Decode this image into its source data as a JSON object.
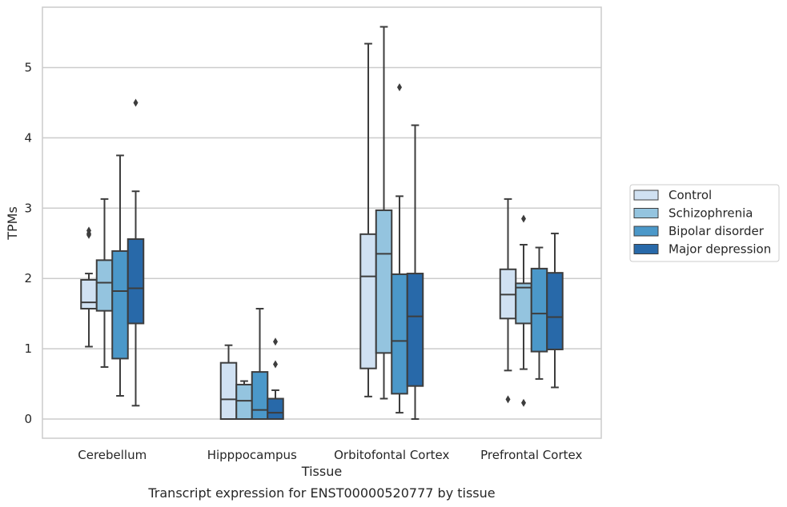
{
  "chart_data": {
    "type": "box",
    "caption": "Transcript expression for ENST00000520777 by tissue",
    "xlabel": "Tissue",
    "ylabel": "TPMs",
    "ylim": [
      -0.27,
      5.85
    ],
    "yticks": [
      0,
      1,
      2,
      3,
      4,
      5
    ],
    "grid": "horizontal",
    "legend_position": "right",
    "categories": [
      "Cerebellum",
      "Hipppocampus",
      "Orbitofontal Cortex",
      "Prefrontal Cortex"
    ],
    "series": [
      {
        "name": "Control",
        "color": "#d0e1f2",
        "boxes": [
          {
            "whislo": 1.03,
            "q1": 1.57,
            "med": 1.66,
            "q3": 1.98,
            "whishi": 2.07,
            "fliers": [
              2.62,
              2.64,
              2.68
            ]
          },
          {
            "whislo": 0.0,
            "q1": 0.0,
            "med": 0.28,
            "q3": 0.8,
            "whishi": 1.05,
            "fliers": []
          },
          {
            "whislo": 0.32,
            "q1": 0.72,
            "med": 2.03,
            "q3": 2.63,
            "whishi": 5.34,
            "fliers": []
          },
          {
            "whislo": 0.69,
            "q1": 1.43,
            "med": 1.77,
            "q3": 2.13,
            "whishi": 3.13,
            "fliers": [
              0.28
            ]
          }
        ]
      },
      {
        "name": "Schizophrenia",
        "color": "#94c4df",
        "boxes": [
          {
            "whislo": 0.74,
            "q1": 1.54,
            "med": 1.94,
            "q3": 2.26,
            "whishi": 3.13,
            "fliers": []
          },
          {
            "whislo": 0.0,
            "q1": 0.0,
            "med": 0.26,
            "q3": 0.49,
            "whishi": 0.54,
            "fliers": []
          },
          {
            "whislo": 0.29,
            "q1": 0.94,
            "med": 2.35,
            "q3": 2.97,
            "whishi": 5.58,
            "fliers": []
          },
          {
            "whislo": 0.71,
            "q1": 1.36,
            "med": 1.87,
            "q3": 1.93,
            "whishi": 2.48,
            "fliers": [
              2.85,
              0.23
            ]
          }
        ]
      },
      {
        "name": "Bipolar disorder",
        "color": "#4b98c9",
        "boxes": [
          {
            "whislo": 0.33,
            "q1": 0.86,
            "med": 1.82,
            "q3": 2.39,
            "whishi": 3.75,
            "fliers": []
          },
          {
            "whislo": 0.0,
            "q1": 0.0,
            "med": 0.13,
            "q3": 0.67,
            "whishi": 1.57,
            "fliers": []
          },
          {
            "whislo": 0.09,
            "q1": 0.36,
            "med": 1.11,
            "q3": 2.06,
            "whishi": 3.17,
            "fliers": [
              4.72
            ]
          },
          {
            "whislo": 0.57,
            "q1": 0.96,
            "med": 1.5,
            "q3": 2.14,
            "whishi": 2.44,
            "fliers": []
          }
        ]
      },
      {
        "name": "Major depression",
        "color": "#2869a9",
        "boxes": [
          {
            "whislo": 0.19,
            "q1": 1.36,
            "med": 1.86,
            "q3": 2.56,
            "whishi": 3.24,
            "fliers": [
              4.5
            ]
          },
          {
            "whislo": 0.0,
            "q1": 0.0,
            "med": 0.09,
            "q3": 0.29,
            "whishi": 0.41,
            "fliers": [
              1.1,
              0.78
            ]
          },
          {
            "whislo": 0.0,
            "q1": 0.47,
            "med": 1.46,
            "q3": 2.07,
            "whishi": 4.18,
            "fliers": []
          },
          {
            "whislo": 0.45,
            "q1": 0.99,
            "med": 1.45,
            "q3": 2.08,
            "whishi": 2.64,
            "fliers": []
          }
        ]
      }
    ]
  }
}
